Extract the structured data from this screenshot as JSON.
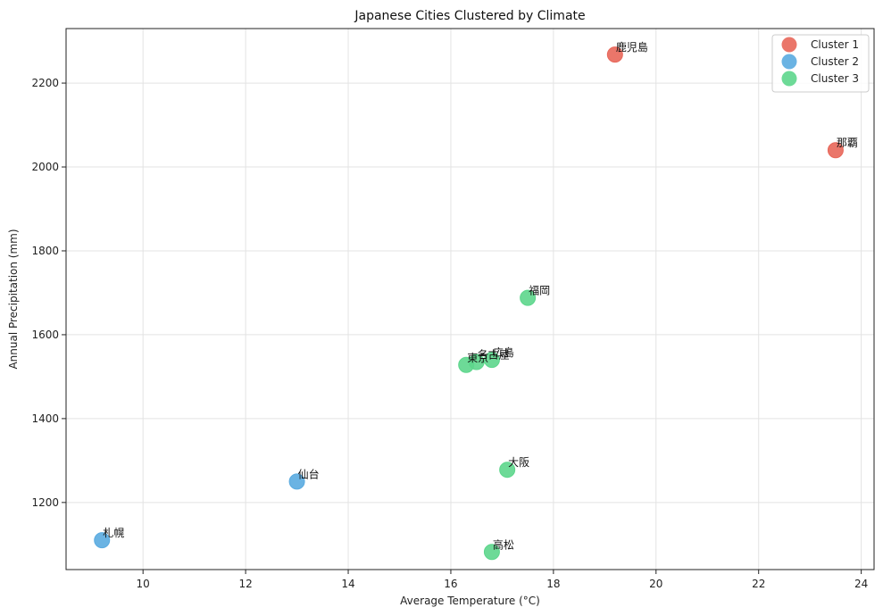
{
  "chart_data": {
    "type": "scatter",
    "title": "Japanese Cities Clustered by Climate",
    "xlabel": "Average Temperature (°C)",
    "ylabel": "Annual Precipitation (mm)",
    "xlim": [
      8.5,
      24.25
    ],
    "ylim": [
      1040,
      2330
    ],
    "xticks": [
      10,
      12,
      14,
      16,
      18,
      20,
      22,
      24
    ],
    "yticks": [
      1200,
      1400,
      1600,
      1800,
      2000,
      2200
    ],
    "grid": true,
    "legend_position": "top-right",
    "series": [
      {
        "name": "Cluster 1",
        "color": "#e8675a",
        "points": [
          {
            "label": "鹿児島",
            "x": 19.2,
            "y": 2268
          },
          {
            "label": "那覇",
            "x": 23.5,
            "y": 2040
          }
        ]
      },
      {
        "name": "Cluster 2",
        "color": "#5aabe0",
        "points": [
          {
            "label": "仙台",
            "x": 13.0,
            "y": 1250
          },
          {
            "label": "札幌",
            "x": 9.2,
            "y": 1110
          }
        ]
      },
      {
        "name": "Cluster 3",
        "color": "#5dd68c",
        "points": [
          {
            "label": "福岡",
            "x": 17.5,
            "y": 1688
          },
          {
            "label": "広島",
            "x": 16.8,
            "y": 1540
          },
          {
            "label": "名古屋",
            "x": 16.5,
            "y": 1535
          },
          {
            "label": "東京",
            "x": 16.3,
            "y": 1528
          },
          {
            "label": "大阪",
            "x": 17.1,
            "y": 1278
          },
          {
            "label": "高松",
            "x": 16.8,
            "y": 1082
          }
        ]
      }
    ]
  }
}
